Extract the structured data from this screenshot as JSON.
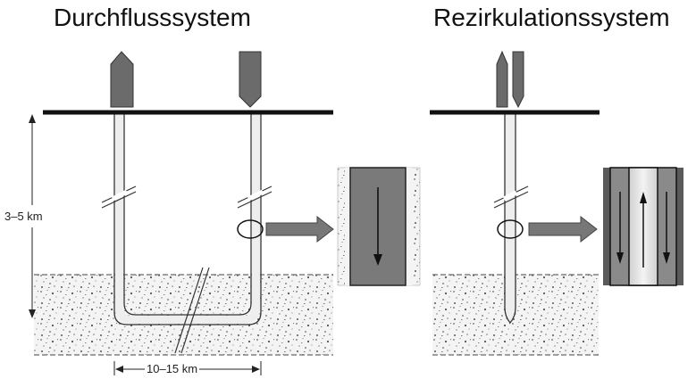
{
  "diagrams": {
    "left_title": "Durchflusssystem",
    "right_title": "Rezirkulationssystem"
  },
  "dimensions": {
    "depth": "3–5 km",
    "width": "10–15 km"
  },
  "colors": {
    "pipe_dark": "#6b6b6b",
    "fluid_gray": "#7a7a7a",
    "ground_dots": "#555555",
    "surface_line": "#111111"
  }
}
